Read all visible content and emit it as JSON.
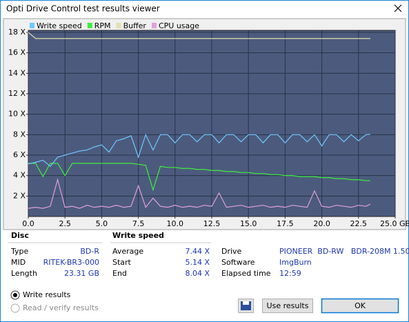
{
  "window": {
    "title": "Opti Drive Control test results viewer"
  },
  "chart_data": {
    "type": "line",
    "x": [
      0,
      0.5,
      1,
      1.5,
      2,
      2.5,
      3,
      3.5,
      4,
      4.5,
      5,
      5.5,
      6,
      6.5,
      7,
      7.5,
      8,
      8.5,
      9,
      9.5,
      10,
      10.5,
      11,
      11.5,
      12,
      12.5,
      13,
      13.5,
      14,
      14.5,
      15,
      15.5,
      16,
      16.5,
      17,
      17.5,
      18,
      18.5,
      19,
      19.5,
      20,
      20.5,
      21,
      21.5,
      22,
      22.5,
      23,
      23.3
    ],
    "series": [
      {
        "name": "Write speed",
        "color": "#6fc8ff",
        "values": [
          5.14,
          5.3,
          5.5,
          4.9,
          5.8,
          6.0,
          6.2,
          6.4,
          6.5,
          6.8,
          7.0,
          6.3,
          7.4,
          7.6,
          7.9,
          5.8,
          8.0,
          6.5,
          8.0,
          8.0,
          7.2,
          8.0,
          8.0,
          7.3,
          8.0,
          8.0,
          7.2,
          8.0,
          8.0,
          7.3,
          8.0,
          8.0,
          7.2,
          8.0,
          8.0,
          7.2,
          8.0,
          8.0,
          7.3,
          8.0,
          6.9,
          8.0,
          8.0,
          7.3,
          8.0,
          7.4,
          8.0,
          8.04
        ]
      },
      {
        "name": "RPM",
        "color": "#3df03d",
        "values": [
          5.2,
          5.2,
          3.9,
          5.2,
          5.2,
          4.0,
          5.2,
          5.2,
          5.2,
          5.2,
          5.2,
          5.2,
          5.2,
          5.2,
          5.2,
          5.1,
          5.0,
          2.6,
          4.9,
          4.8,
          4.8,
          4.7,
          4.7,
          4.6,
          4.6,
          4.5,
          4.5,
          4.4,
          4.4,
          4.3,
          4.3,
          4.2,
          4.2,
          4.1,
          4.1,
          4.0,
          4.0,
          3.9,
          3.9,
          3.9,
          3.8,
          3.8,
          3.7,
          3.7,
          3.6,
          3.6,
          3.5,
          3.5
        ]
      },
      {
        "name": "Buffer",
        "color": "#e2e2b0",
        "values": [
          18,
          17.4,
          17.4,
          17.4,
          17.4,
          17.4,
          17.4,
          17.4,
          17.4,
          17.4,
          17.4,
          17.4,
          17.4,
          17.4,
          17.4,
          17.4,
          17.4,
          17.4,
          17.4,
          17.4,
          17.4,
          17.4,
          17.4,
          17.4,
          17.4,
          17.4,
          17.4,
          17.4,
          17.4,
          17.4,
          17.4,
          17.4,
          17.4,
          17.4,
          17.4,
          17.4,
          17.4,
          17.4,
          17.4,
          17.4,
          17.4,
          17.4,
          17.4,
          17.4,
          17.4,
          17.4,
          17.4,
          17.4
        ]
      },
      {
        "name": "CPU usage",
        "color": "#e0a0dc",
        "values": [
          0.8,
          0.9,
          0.8,
          1.0,
          3.6,
          0.9,
          1.0,
          0.8,
          1.1,
          0.9,
          1.0,
          0.9,
          1.1,
          0.9,
          1.0,
          3.0,
          0.9,
          1.8,
          1.0,
          0.9,
          1.1,
          0.9,
          1.0,
          0.9,
          1.1,
          1.0,
          2.3,
          0.9,
          1.0,
          1.1,
          0.9,
          1.0,
          1.1,
          0.9,
          1.0,
          0.9,
          1.1,
          1.0,
          0.9,
          2.5,
          1.0,
          0.9,
          1.1,
          1.0,
          0.9,
          1.1,
          1.0,
          1.2
        ]
      }
    ],
    "xlim": [
      0,
      25
    ],
    "xticks": [
      {
        "value": 0,
        "label": "0.0"
      },
      {
        "value": 2.5,
        "label": "2.5"
      },
      {
        "value": 5,
        "label": "5.0"
      },
      {
        "value": 7.5,
        "label": "7.5"
      },
      {
        "value": 10,
        "label": "10.0"
      },
      {
        "value": 12.5,
        "label": "12.5"
      },
      {
        "value": 15,
        "label": "15.0"
      },
      {
        "value": 17.5,
        "label": "17.5"
      },
      {
        "value": 20,
        "label": "20.0"
      },
      {
        "value": 22.5,
        "label": "22.5"
      },
      {
        "value": 25,
        "label": "25.0 GB"
      }
    ],
    "ylim": [
      0,
      18.2
    ],
    "yticks": [
      {
        "value": 2,
        "label": "2 X"
      },
      {
        "value": 4,
        "label": "4 X"
      },
      {
        "value": 6,
        "label": "6 X"
      },
      {
        "value": 8,
        "label": "8 X"
      },
      {
        "value": 10,
        "label": "10 X"
      },
      {
        "value": 12,
        "label": "12 X"
      },
      {
        "value": 14,
        "label": "14 X"
      },
      {
        "value": 16,
        "label": "16 X"
      },
      {
        "value": 18,
        "label": "18 X"
      }
    ],
    "grid": true
  },
  "disc": {
    "heading": "Disc",
    "rows": [
      [
        "Type",
        "BD-R"
      ],
      [
        "MID",
        "RITEK-BR3-000"
      ],
      [
        "Length",
        "23.31 GB"
      ]
    ]
  },
  "write_speed": {
    "heading": "Write speed",
    "rows": [
      [
        "Average",
        "7.44 X"
      ],
      [
        "Start",
        "5.14 X"
      ],
      [
        "End",
        "8.04 X"
      ]
    ]
  },
  "drive_info": {
    "rows": [
      [
        "Drive",
        "PIONEER  BD-RW   BDR-208M 1.50"
      ],
      [
        "Software",
        "ImgBurn"
      ],
      [
        "Elapsed time",
        "12:59"
      ]
    ]
  },
  "options": [
    "Write results",
    "Read / verify results"
  ],
  "buttons": [
    "Use results",
    "OK"
  ]
}
